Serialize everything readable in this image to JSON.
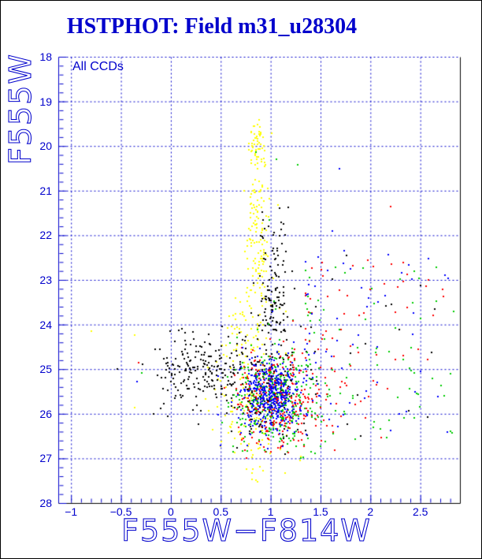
{
  "title": "HSTPHOT: Field m31_u28304",
  "annotation": "All CCDs",
  "chart_data": {
    "type": "scatter",
    "title": "HSTPHOT: Field m31_u28304",
    "xlabel": "F555W−F814W",
    "ylabel": "F555W",
    "annotation": "All CCDs",
    "xlim": [
      -1.128,
      2.897
    ],
    "ylim": [
      28,
      18
    ],
    "y_axis_inverted": true,
    "x_major_ticks": [
      -1,
      -0.5,
      0,
      0.5,
      1,
      1.5,
      2,
      2.5
    ],
    "x_tick_labels": [
      "−1",
      "−0.5",
      "0",
      "0.5",
      "1",
      "1.5",
      "2",
      "2.5"
    ],
    "x_minor_step": 0.1,
    "y_major_ticks": [
      18,
      19,
      20,
      21,
      22,
      23,
      24,
      25,
      26,
      27,
      28
    ],
    "y_tick_labels": [
      "18",
      "19",
      "20",
      "21",
      "22",
      "23",
      "24",
      "25",
      "26",
      "27",
      "28"
    ],
    "y_minor_step": 0.2,
    "grid": {
      "show": true,
      "style": "dashed",
      "color": "#0000cc",
      "dash": [
        2,
        3
      ],
      "x_values": [
        -1,
        -0.5,
        0,
        0.5,
        1,
        1.5,
        2,
        2.5
      ],
      "y_values": [
        18,
        19,
        20,
        21,
        22,
        23,
        24,
        25,
        26,
        27
      ]
    },
    "axis_colors": {
      "left": "#0000cc",
      "bottom": "#000000",
      "right": "#000000",
      "top": "#0000cc"
    },
    "tick_color": "#0000cc",
    "text_color": "#0000cc",
    "point_size": 2,
    "palette": {
      "yellow": "#ffff00",
      "black": "#000000",
      "green": "#00cc00",
      "red": "#ff0000",
      "blue": "#0000ff"
    },
    "series_note": "Dense unlabeled star scatter; each cluster summarizes a population read from the pixels (positions in data units: x = F555W-F814W color, y = F555W magnitude).",
    "series": [
      {
        "name": "yellow-bright-plume",
        "color": "#ffff00",
        "n": 55,
        "dist": "gauss",
        "cx": 0.875,
        "cy": 19.95,
        "sx": 0.05,
        "sy": 0.33,
        "clip": [
          0.7,
          1.05,
          19.42,
          20.75
        ]
      },
      {
        "name": "yellow-mid-plume",
        "color": "#ffff00",
        "n": 115,
        "dist": "gx_uy",
        "cx": 0.865,
        "sx": 0.06,
        "clipx": [
          0.68,
          1.1
        ],
        "y": [
          20.75,
          23.4
        ]
      },
      {
        "name": "yellow-low-spray",
        "color": "#ffff00",
        "n": 160,
        "dist": "gx_uy",
        "cx": 0.78,
        "sx": 0.17,
        "clipx": [
          0.3,
          1.28
        ],
        "y": [
          23.4,
          26.9
        ]
      },
      {
        "name": "yellow-faint-tail",
        "color": "#ffff00",
        "n": 13,
        "dist": "uniform",
        "x": [
          0.72,
          1.38
        ],
        "y": [
          26.9,
          27.62
        ]
      },
      {
        "name": "black-main-sequence-arm",
        "color": "#000000",
        "n": 200,
        "dist": "gauss",
        "cx": 0.32,
        "cy": 25.05,
        "sx": 0.27,
        "sy": 0.42,
        "clip": [
          -0.55,
          0.78,
          23.9,
          26.3
        ]
      },
      {
        "name": "black-upper-sequence",
        "color": "#000000",
        "n": 120,
        "dist": "gx_py",
        "cx": 1.03,
        "sx": 0.09,
        "clipx": [
          0.8,
          1.42
        ],
        "y": [
          21.3,
          24.2
        ],
        "pow": 0.55
      },
      {
        "name": "black-clump",
        "color": "#000000",
        "n": 160,
        "dist": "gauss",
        "cx": 0.97,
        "cy": 25.35,
        "sx": 0.18,
        "sy": 0.52,
        "clip": [
          0.5,
          1.6,
          23.8,
          26.9
        ]
      },
      {
        "name": "black-sparse-field",
        "color": "#000000",
        "n": 22,
        "dist": "uniform",
        "x": [
          1.15,
          2.65
        ],
        "y": [
          22.2,
          26.5
        ]
      },
      {
        "name": "green-clump",
        "color": "#00cc00",
        "n": 370,
        "dist": "gauss",
        "cx": 1.06,
        "cy": 25.65,
        "sx": 0.21,
        "sy": 0.58,
        "clip": [
          0.5,
          1.75,
          23.4,
          27.05
        ]
      },
      {
        "name": "green-right-spray",
        "color": "#00cc00",
        "n": 70,
        "dist": "px_uy",
        "x": [
          1.35,
          2.87
        ],
        "pow": 1.7,
        "y": [
          22.7,
          26.6
        ]
      },
      {
        "name": "red-clump",
        "color": "#ff0000",
        "n": 290,
        "dist": "gauss",
        "cx": 1.07,
        "cy": 25.7,
        "sx": 0.23,
        "sy": 0.6,
        "clip": [
          0.5,
          1.8,
          23.3,
          27.0
        ]
      },
      {
        "name": "red-right-spray",
        "color": "#ff0000",
        "n": 65,
        "dist": "px_uy",
        "x": [
          1.35,
          2.85
        ],
        "pow": 1.7,
        "y": [
          22.5,
          26.6
        ]
      },
      {
        "name": "blue-clump-core",
        "color": "#0000ff",
        "n": 320,
        "dist": "gauss",
        "cx": 1.0,
        "cy": 25.55,
        "sx": 0.13,
        "sy": 0.4,
        "clip": [
          0.6,
          1.5,
          24.0,
          27.0
        ]
      },
      {
        "name": "blue-clump-halo",
        "color": "#0000ff",
        "n": 80,
        "dist": "gauss",
        "cx": 1.0,
        "cy": 25.6,
        "sx": 0.25,
        "sy": 0.65,
        "clip": [
          0.45,
          1.7,
          23.6,
          27.0
        ]
      },
      {
        "name": "blue-right-spray",
        "color": "#0000ff",
        "n": 55,
        "dist": "px_uy",
        "x": [
          1.35,
          2.8
        ],
        "pow": 1.7,
        "y": [
          22.3,
          26.5
        ]
      },
      {
        "name": "isolated-outlier-stars",
        "dist": "points",
        "points": [
          [
            -0.8,
            24.15,
            "#ffff00"
          ],
          [
            -0.36,
            24.23,
            "#ffff00"
          ],
          [
            -0.36,
            25.87,
            "#ffff00"
          ],
          [
            -0.54,
            25.0,
            "#000000"
          ],
          [
            -0.32,
            24.85,
            "#ff0000"
          ],
          [
            -0.34,
            25.28,
            "#0000ff"
          ],
          [
            -0.29,
            25.09,
            "#00cc00"
          ],
          [
            0.85,
            20.13,
            "#00cc00"
          ],
          [
            1.06,
            20.29,
            "#00cc00"
          ],
          [
            1.27,
            20.42,
            "#00cc00"
          ],
          [
            0.99,
            21.65,
            "#00cc00"
          ],
          [
            1.69,
            20.51,
            "#0000ff"
          ],
          [
            1.74,
            22.34,
            "#0000ff"
          ],
          [
            1.62,
            21.9,
            "#0000ff"
          ],
          [
            1.76,
            22.46,
            "#000000"
          ],
          [
            2.33,
            22.61,
            "#ff0000"
          ],
          [
            2.66,
            22.72,
            "#00cc00"
          ],
          [
            2.83,
            23.7,
            "#00cc00"
          ],
          [
            2.56,
            23.15,
            "#ff0000"
          ],
          [
            2.2,
            21.35,
            "#ff0000"
          ]
        ]
      }
    ]
  }
}
